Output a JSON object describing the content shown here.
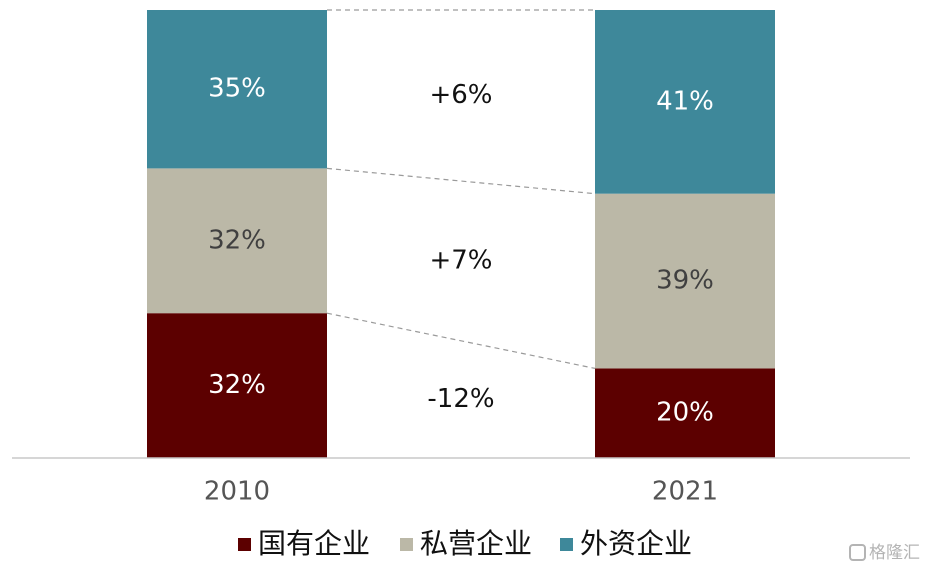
{
  "chart_data": {
    "type": "bar",
    "stacked": true,
    "normalized": true,
    "categories": [
      "2010",
      "2021"
    ],
    "series": [
      {
        "name": "国有企业",
        "values": [
          32,
          20
        ],
        "labels": [
          "32%",
          "20%"
        ],
        "color": "#5c0000",
        "text_color": "#ffffff"
      },
      {
        "name": "私营企业",
        "values": [
          32,
          39
        ],
        "labels": [
          "32%",
          "39%"
        ],
        "color": "#bbb8a7",
        "text_color": "#404040"
      },
      {
        "name": "外资企业",
        "values": [
          35,
          41
        ],
        "labels": [
          "35%",
          "41%"
        ],
        "color": "#3e889a",
        "text_color": "#ffffff"
      }
    ],
    "changes": [
      "-12%",
      "+7%",
      "+6%"
    ],
    "legend_position": "bottom",
    "grid": false
  },
  "watermark": "格隆汇"
}
